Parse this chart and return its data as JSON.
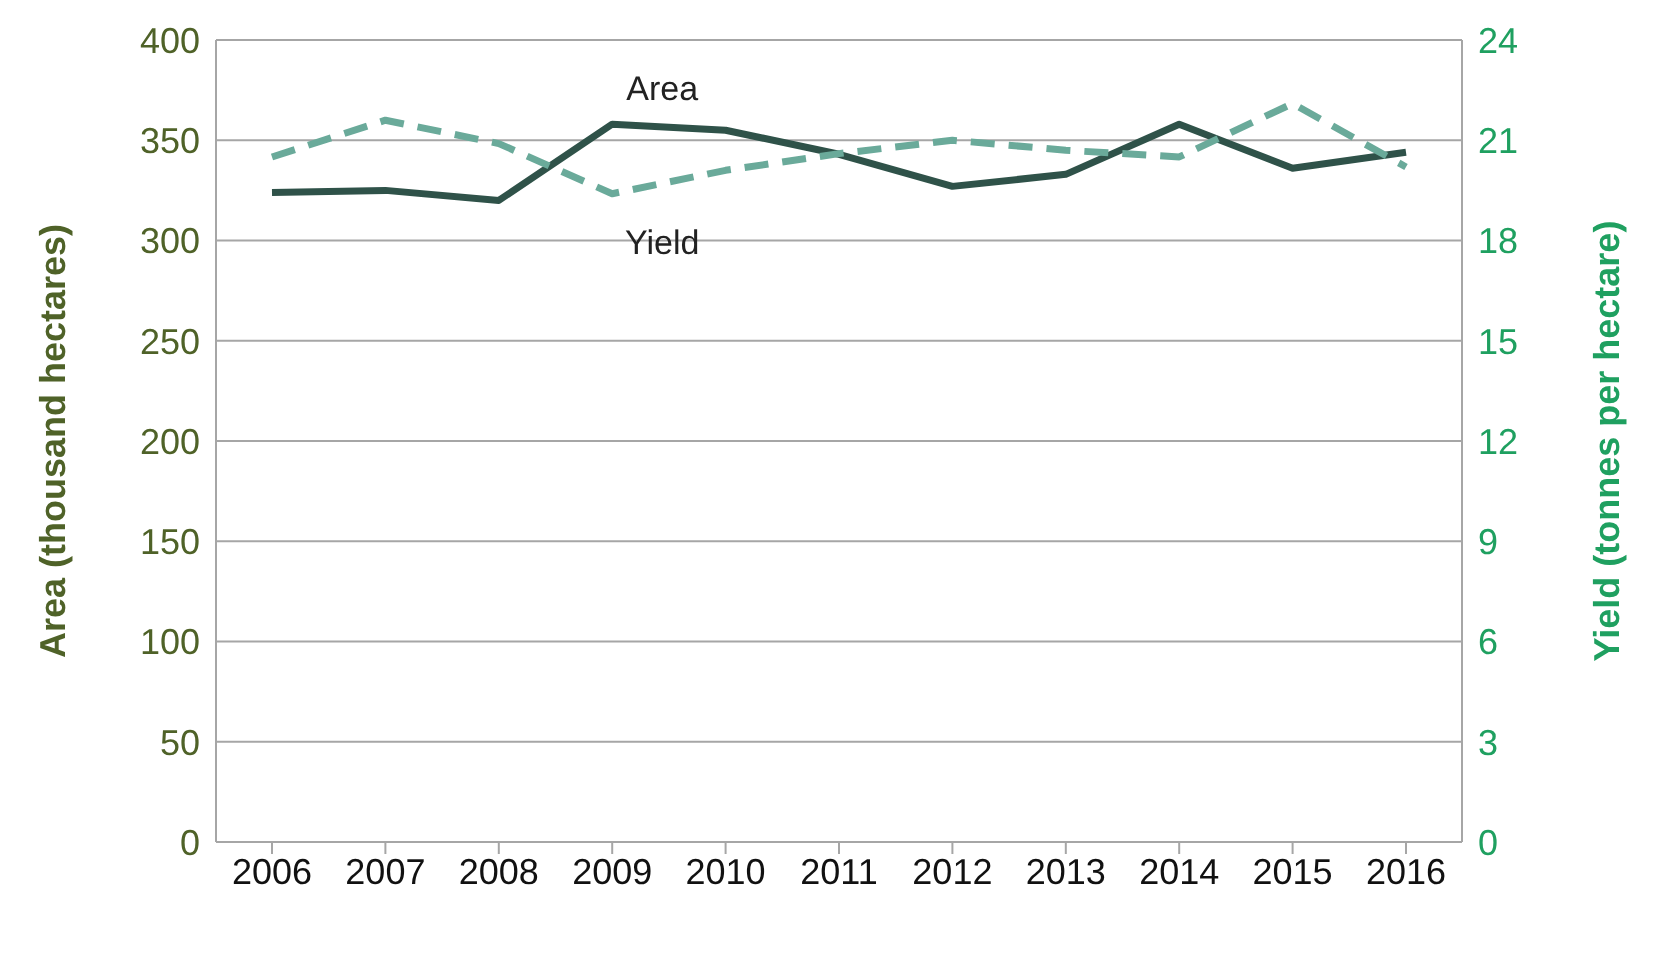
{
  "chart_data": {
    "type": "line",
    "categories": [
      "2006",
      "2007",
      "2008",
      "2009",
      "2010",
      "2011",
      "2012",
      "2013",
      "2014",
      "2015",
      "2016"
    ],
    "ylabel": "Area (thousand hectares)",
    "y2label": "Yield (tonnes per hectare)",
    "ylim": [
      0,
      400
    ],
    "yticks": [
      0,
      50,
      100,
      150,
      200,
      250,
      300,
      350,
      400
    ],
    "y2lim": [
      0,
      24
    ],
    "y2ticks": [
      0,
      3,
      6,
      9,
      12,
      15,
      18,
      21,
      24
    ],
    "grid": "y",
    "legend": false,
    "marker": "none",
    "series": [
      {
        "name": "Area",
        "color": "#2f5249",
        "line_style": "solid",
        "values": [
          324,
          325,
          320,
          358,
          355,
          343,
          327,
          333,
          358,
          336,
          344
        ]
      },
      {
        "name": "Yield",
        "color": "#6aaa9a",
        "line_style": "dashed",
        "axis": "y2",
        "values": [
          20.5,
          21.6,
          20.9,
          19.4,
          20.1,
          20.6,
          21.0,
          20.7,
          20.5,
          22.1,
          20.2
        ]
      }
    ]
  }
}
